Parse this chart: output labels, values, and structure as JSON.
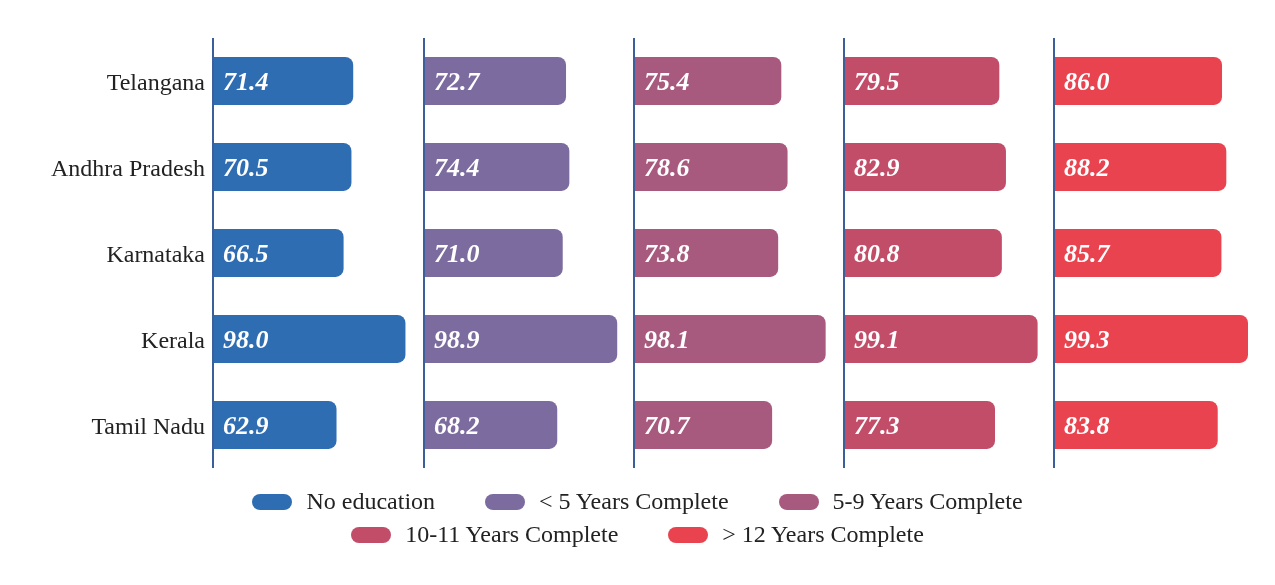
{
  "chart_data": [
    {
      "type": "bar",
      "orientation": "horizontal",
      "categories": [
        "Telangana",
        "Andhra Pradesh",
        "Karnataka",
        "Kerala",
        "Tamil Nadu"
      ],
      "tick_labels": "y",
      "legend": "bottom",
      "series": [
        {
          "name": "No education",
          "color": "#2f6db2",
          "values": [
            71.4,
            70.5,
            66.5,
            98.0,
            62.9
          ],
          "value_labels": [
            "71.4",
            "70.5",
            "66.5",
            "98.0",
            "62.9"
          ]
        }
      ]
    },
    {
      "type": "bar",
      "orientation": "horizontal",
      "tick_labels": false,
      "legend": "bottom",
      "series": [
        {
          "name": "< 5 Years Complete",
          "color": "#7b6b9e",
          "values": [
            72.7,
            74.4,
            71.0,
            98.9,
            68.2
          ],
          "value_labels": [
            "72.7",
            "74.4",
            "71.0",
            "98.9",
            "68.2"
          ]
        }
      ]
    },
    {
      "type": "bar",
      "orientation": "horizontal",
      "tick_labels": false,
      "legend": "bottom",
      "series": [
        {
          "name": "5-9 Years Complete",
          "color": "#a8597e",
          "values": [
            75.4,
            78.6,
            73.8,
            98.1,
            70.7
          ],
          "value_labels": [
            "75.4",
            "78.6",
            "73.8",
            "98.1",
            "70.7"
          ]
        }
      ]
    },
    {
      "type": "bar",
      "orientation": "horizontal",
      "tick_labels": false,
      "legend": "bottom",
      "series": [
        {
          "name": "10-11 Years Complete",
          "color": "#c24d69",
          "values": [
            79.5,
            82.9,
            80.8,
            99.1,
            77.3
          ],
          "value_labels": [
            "79.5",
            "82.9",
            "80.8",
            "99.1",
            "77.3"
          ]
        }
      ]
    },
    {
      "type": "bar",
      "orientation": "horizontal",
      "tick_labels": false,
      "legend": "bottom",
      "series": [
        {
          "name": "> 12 Years Complete",
          "color": "#e8434f",
          "values": [
            86.0,
            88.2,
            85.7,
            99.3,
            83.8
          ],
          "value_labels": [
            "86.0",
            "88.2",
            "85.7",
            "99.3",
            "83.8"
          ]
        }
      ]
    }
  ]
}
